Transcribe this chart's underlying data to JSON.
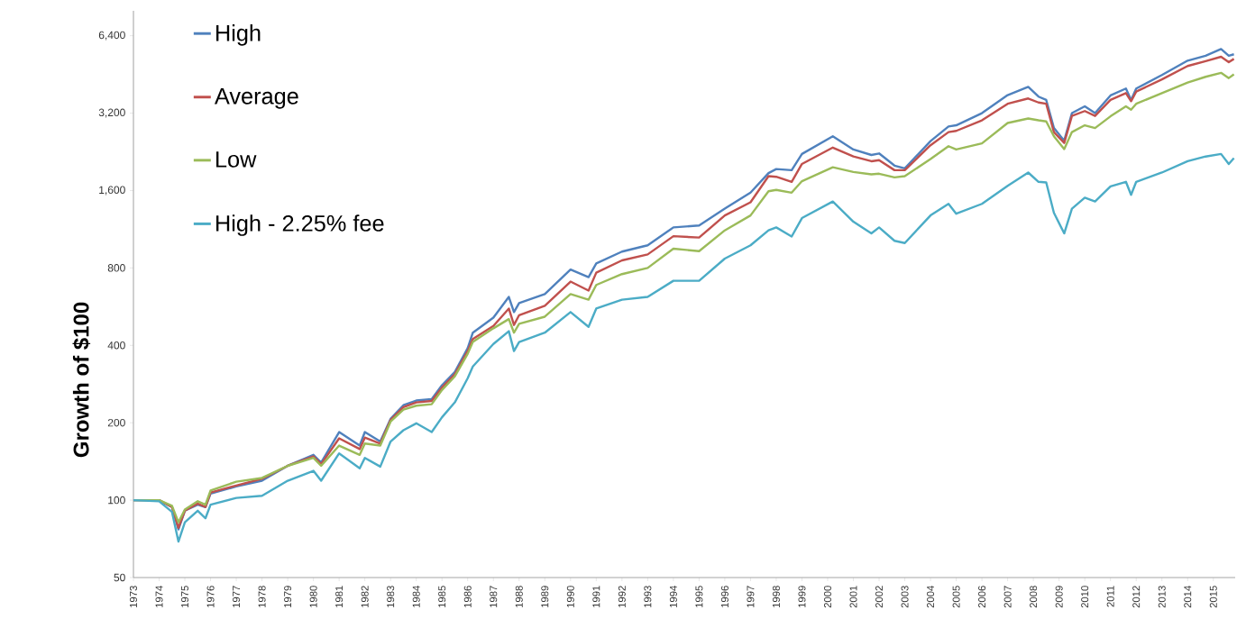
{
  "chart_data": {
    "type": "line",
    "ylabel": "Growth of $100",
    "log": "y",
    "legend": "top left",
    "marker": "none",
    "line_style": "solid",
    "xlim": [
      1973,
      2015.85
    ],
    "ylim": [
      50,
      8000
    ],
    "xticks": [
      1973,
      1974,
      1975,
      1976,
      1977,
      1978,
      1979,
      1980,
      1981,
      1982,
      1983,
      1984,
      1985,
      1986,
      1987,
      1988,
      1989,
      1990,
      1991,
      1992,
      1993,
      1994,
      1995,
      1996,
      1997,
      1998,
      1999,
      2000,
      2001,
      2002,
      2003,
      2004,
      2005,
      2006,
      2007,
      2008,
      2009,
      2010,
      2011,
      2012,
      2013,
      2014,
      2015
    ],
    "yticks": [
      50,
      100,
      200,
      400,
      800,
      {
        "value": 1600,
        "label": "1,600"
      },
      {
        "value": 3200,
        "label": "3,200"
      },
      {
        "value": 6400,
        "label": "6,400"
      }
    ],
    "x": [
      1973.0,
      1974.0,
      1974.5,
      1974.75,
      1975.0,
      1975.5,
      1975.8,
      1976.0,
      1977.0,
      1978.0,
      1979.0,
      1980.0,
      1980.3,
      1981.0,
      1981.8,
      1982.0,
      1982.6,
      1983.0,
      1983.5,
      1984.0,
      1984.6,
      1985.0,
      1985.5,
      1986.0,
      1986.2,
      1987.0,
      1987.6,
      1987.8,
      1988.0,
      1989.0,
      1990.0,
      1990.7,
      1991.0,
      1992.0,
      1993.0,
      1994.0,
      1995.0,
      1996.0,
      1997.0,
      1997.7,
      1998.0,
      1998.6,
      1999.0,
      2000.2,
      2001.0,
      2001.7,
      2002.0,
      2002.6,
      2003.0,
      2004.0,
      2004.7,
      2005.0,
      2006.0,
      2007.0,
      2007.8,
      2008.2,
      2008.5,
      2008.8,
      2009.2,
      2009.5,
      2010.0,
      2010.4,
      2011.0,
      2011.6,
      2011.8,
      2012.0,
      2013.0,
      2014.0,
      2014.7,
      2015.3,
      2015.6,
      2015.8
    ],
    "series": [
      {
        "name": "High",
        "color": "#4f81bd",
        "values": [
          100,
          100,
          94,
          77,
          91,
          96,
          94,
          106,
          113,
          119,
          136,
          150,
          140,
          184,
          163,
          184,
          169,
          207,
          234,
          244,
          247,
          280,
          315,
          390,
          448,
          513,
          617,
          539,
          584,
          633,
          789,
          737,
          833,
          926,
          980,
          1150,
          1170,
          1360,
          1570,
          1870,
          1940,
          1920,
          2220,
          2600,
          2310,
          2200,
          2230,
          2000,
          1950,
          2490,
          2840,
          2870,
          3200,
          3760,
          4050,
          3710,
          3600,
          2800,
          2500,
          3200,
          3400,
          3200,
          3750,
          3990,
          3600,
          3990,
          4500,
          5120,
          5350,
          5680,
          5350,
          5420
        ]
      },
      {
        "name": "Average",
        "color": "#c0504d",
        "values": [
          100,
          100,
          94,
          78,
          91,
          97,
          94,
          107,
          114,
          121,
          136,
          148,
          138,
          174,
          158,
          175,
          166,
          205,
          230,
          240,
          243,
          274,
          309,
          380,
          423,
          476,
          556,
          480,
          524,
          570,
          708,
          653,
          767,
          856,
          903,
          1063,
          1050,
          1280,
          1440,
          1820,
          1810,
          1730,
          2030,
          2350,
          2170,
          2080,
          2100,
          1920,
          1920,
          2400,
          2700,
          2730,
          3000,
          3480,
          3650,
          3520,
          3480,
          2700,
          2450,
          3120,
          3260,
          3120,
          3600,
          3830,
          3560,
          3880,
          4330,
          4880,
          5100,
          5300,
          5050,
          5200
        ]
      },
      {
        "name": "Low",
        "color": "#9bbb59",
        "values": [
          100,
          100,
          95,
          82,
          92,
          99,
          96,
          109,
          118,
          122,
          136,
          146,
          136,
          163,
          150,
          166,
          163,
          202,
          225,
          233,
          236,
          268,
          303,
          371,
          412,
          466,
          506,
          448,
          485,
          517,
          633,
          602,
          687,
          757,
          800,
          950,
          930,
          1120,
          1280,
          1590,
          1610,
          1570,
          1740,
          1970,
          1890,
          1850,
          1860,
          1800,
          1820,
          2120,
          2380,
          2310,
          2440,
          2930,
          3050,
          3000,
          2970,
          2600,
          2320,
          2700,
          2870,
          2800,
          3110,
          3400,
          3300,
          3480,
          3830,
          4210,
          4430,
          4590,
          4380,
          4530
        ]
      },
      {
        "name": "High - 2.25% fee",
        "color": "#4bacc6",
        "values": [
          100,
          99,
          90,
          69,
          82,
          91,
          85,
          96,
          102,
          104,
          119,
          130,
          119,
          152,
          133,
          146,
          135,
          169,
          187,
          199,
          184,
          210,
          240,
          298,
          331,
          405,
          454,
          380,
          412,
          448,
          539,
          472,
          556,
          602,
          617,
          713,
          713,
          870,
          980,
          1120,
          1150,
          1060,
          1250,
          1450,
          1210,
          1090,
          1150,
          1020,
          1000,
          1280,
          1420,
          1300,
          1420,
          1670,
          1880,
          1730,
          1720,
          1310,
          1090,
          1360,
          1500,
          1450,
          1660,
          1730,
          1540,
          1730,
          1880,
          2080,
          2170,
          2220,
          2030,
          2140
        ]
      }
    ]
  }
}
